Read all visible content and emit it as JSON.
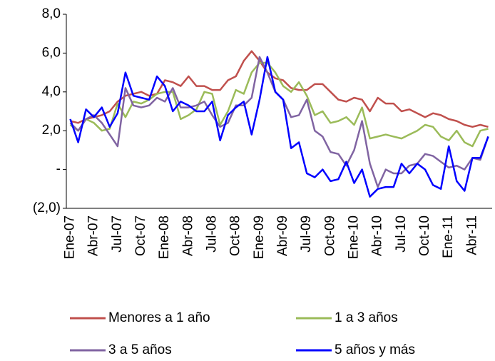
{
  "chart_data": {
    "type": "line",
    "categories": [
      "Ene-07",
      null,
      null,
      "Abr-07",
      null,
      null,
      "Jul-07",
      null,
      null,
      "Oct-07",
      null,
      null,
      "Ene-08",
      null,
      null,
      "Abr-08",
      null,
      null,
      "Jul-08",
      null,
      null,
      "Oct-08",
      null,
      null,
      "Ene-09",
      null,
      null,
      "Abr-09",
      null,
      null,
      "Jul-09",
      null,
      null,
      "Oct-09",
      null,
      null,
      "Ene-10",
      null,
      null,
      "Abr-10",
      null,
      null,
      "Jul-10",
      null,
      null,
      "Oct-10",
      null,
      null,
      "Ene-11",
      null,
      null,
      "Abr-11",
      null,
      null
    ],
    "series": [
      {
        "name": "Menores a 1 año",
        "color": "#c0504d",
        "values": [
          2.5,
          2.4,
          2.6,
          2.7,
          2.8,
          3.0,
          3.5,
          3.8,
          3.9,
          4.0,
          3.8,
          3.9,
          4.6,
          4.5,
          4.3,
          4.8,
          4.3,
          4.3,
          4.1,
          4.1,
          4.6,
          4.8,
          5.6,
          6.1,
          5.6,
          5.0,
          4.7,
          4.6,
          4.2,
          4.1,
          4.1,
          4.4,
          4.4,
          4.0,
          3.6,
          3.5,
          3.7,
          3.6,
          3.0,
          3.7,
          3.4,
          3.4,
          3.0,
          3.1,
          2.9,
          2.7,
          2.9,
          2.8,
          2.6,
          2.5,
          2.3,
          2.2,
          2.3,
          2.2
        ]
      },
      {
        "name": "1 a 3 años",
        "color": "#9bbb59",
        "values": [
          2.3,
          2.0,
          2.6,
          2.4,
          2.0,
          2.1,
          3.4,
          2.7,
          3.5,
          3.4,
          3.6,
          3.9,
          4.0,
          4.0,
          2.6,
          2.8,
          3.1,
          4.0,
          3.9,
          2.3,
          3.0,
          4.1,
          3.9,
          5.0,
          5.5,
          5.5,
          5.0,
          4.3,
          4.0,
          4.5,
          3.8,
          2.8,
          3.0,
          2.4,
          2.5,
          2.7,
          2.3,
          3.2,
          1.6,
          1.7,
          1.8,
          1.7,
          1.6,
          1.8,
          2.0,
          2.3,
          2.2,
          1.7,
          1.5,
          2.0,
          1.4,
          1.2,
          2.0,
          2.1
        ]
      },
      {
        "name": "3 a 5 años",
        "color": "#8064a2",
        "values": [
          2.4,
          2.0,
          2.6,
          2.8,
          2.4,
          1.8,
          1.2,
          4.2,
          3.3,
          3.2,
          3.3,
          3.7,
          3.5,
          4.2,
          3.2,
          3.2,
          3.3,
          3.5,
          2.8,
          2.2,
          2.4,
          3.3,
          3.3,
          3.7,
          5.8,
          5.0,
          4.0,
          3.6,
          2.7,
          2.8,
          3.6,
          2.0,
          1.7,
          0.9,
          0.8,
          0.2,
          1.0,
          2.5,
          0.3,
          -0.9,
          0.0,
          -0.2,
          -0.2,
          0.2,
          0.3,
          0.8,
          0.7,
          0.4,
          0.1,
          0.2,
          0.0,
          0.6,
          0.5,
          1.7
        ]
      },
      {
        "name": "5 años y más",
        "color": "#0000ff",
        "values": [
          2.6,
          1.4,
          3.1,
          2.7,
          3.2,
          2.2,
          2.9,
          5.0,
          3.8,
          3.7,
          3.6,
          4.8,
          4.3,
          3.0,
          3.5,
          3.3,
          3.0,
          3.0,
          3.5,
          1.5,
          2.8,
          3.2,
          3.5,
          1.8,
          3.6,
          5.8,
          4.0,
          3.6,
          1.1,
          1.4,
          -0.2,
          -0.4,
          0.0,
          -0.6,
          -0.5,
          0.4,
          -0.7,
          0.0,
          -1.4,
          -1.0,
          -0.9,
          -0.9,
          0.3,
          -0.2,
          0.3,
          0.0,
          -0.8,
          -1.0,
          1.2,
          -0.6,
          -1.1,
          0.6,
          0.6,
          1.7
        ]
      }
    ],
    "ylim": [
      -2,
      8
    ],
    "yticks": [
      {
        "value": -2,
        "label": "(2,0)"
      },
      {
        "value": 0,
        "label": "-"
      },
      {
        "value": 2,
        "label": "2,0"
      },
      {
        "value": 4,
        "label": "4,0"
      },
      {
        "value": 6,
        "label": "6,0"
      },
      {
        "value": 8,
        "label": "8,0"
      }
    ],
    "grid": false
  }
}
